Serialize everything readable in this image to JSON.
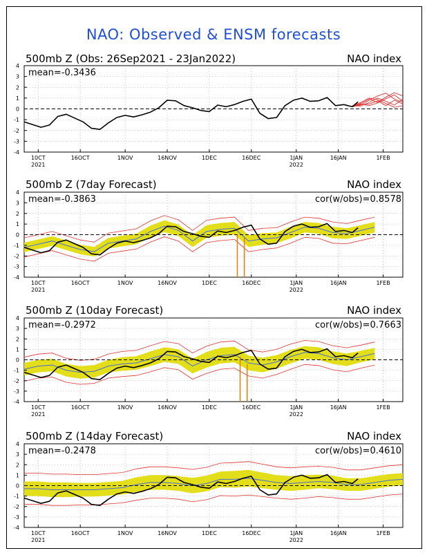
{
  "title": "NAO: Observed & ENSM forecasts",
  "colors": {
    "title": "#1f4fd6",
    "observed": "#000000",
    "ensemble_mean": "#4a6cd4",
    "spread_fill": "#e3de1a",
    "bounds": "#e03030",
    "members": "#e03030",
    "outlier": "#f07a00"
  },
  "x_axis": {
    "tick_labels": [
      "10CT",
      "16OCT",
      "1NOV",
      "16NOV",
      "1DEC",
      "16DEC",
      "1JAN",
      "16JAN",
      "1FEB"
    ],
    "year_labels": [
      {
        "day": 5,
        "label": "2021"
      },
      {
        "day": 97,
        "label": "2022"
      }
    ],
    "tick_days": [
      5,
      20,
      36,
      51,
      66,
      81,
      97,
      112,
      128
    ],
    "range_days": [
      0,
      135
    ]
  },
  "chart_data": [
    {
      "type": "line",
      "title": "500mb Z (Obs: 26Sep2021 - 23Jan2022)",
      "right_label": "NAO index",
      "mean_label": "mean=-0.3436",
      "cor_label": "",
      "ylim": [
        -4,
        4
      ],
      "yticks": [
        "4",
        "3",
        "2",
        "1",
        "0",
        "-1",
        "-2",
        "-3",
        "-4"
      ],
      "observed_days": [
        0,
        3,
        6,
        9,
        12,
        15,
        18,
        21,
        24,
        27,
        30,
        33,
        36,
        39,
        42,
        45,
        48,
        51,
        54,
        57,
        60,
        63,
        66,
        69,
        72,
        75,
        78,
        81,
        84,
        87,
        90,
        93,
        96,
        99,
        102,
        105,
        108,
        111,
        114,
        117,
        119
      ],
      "observed": [
        -1.2,
        -1.45,
        -1.7,
        -1.5,
        -0.7,
        -0.5,
        -0.85,
        -1.2,
        -1.8,
        -1.9,
        -1.3,
        -0.8,
        -0.6,
        -0.75,
        -0.55,
        -0.3,
        0.1,
        0.8,
        0.75,
        0.3,
        0.1,
        -0.15,
        -0.25,
        0.35,
        0.2,
        0.4,
        0.7,
        0.9,
        -0.4,
        -0.9,
        -0.8,
        0.3,
        0.8,
        1.0,
        0.7,
        0.75,
        1.05,
        0.3,
        0.4,
        0.2,
        0.65
      ],
      "forecast_members": [
        {
          "days": [
            117,
            120,
            123,
            126,
            129,
            132,
            135
          ],
          "values": [
            0.2,
            0.35,
            0.8,
            1.2,
            1.45,
            0.9,
            0.6
          ]
        },
        {
          "days": [
            117,
            120,
            123,
            126,
            129,
            132,
            135
          ],
          "values": [
            0.25,
            0.5,
            0.9,
            0.6,
            1.1,
            1.5,
            1.2
          ]
        },
        {
          "days": [
            117,
            120,
            123,
            126,
            129,
            132,
            135
          ],
          "values": [
            0.2,
            0.4,
            0.45,
            0.75,
            0.3,
            0.8,
            0.45
          ]
        },
        {
          "days": [
            117,
            120,
            123,
            126,
            129,
            132,
            135
          ],
          "values": [
            0.3,
            0.25,
            0.6,
            1.0,
            0.7,
            0.35,
            0.9
          ]
        },
        {
          "days": [
            117,
            120,
            123,
            126,
            129,
            132,
            135
          ],
          "values": [
            0.22,
            0.45,
            0.3,
            0.55,
            0.95,
            1.3,
            0.7
          ]
        },
        {
          "days": [
            117,
            120,
            123,
            126,
            129,
            132,
            135
          ],
          "values": [
            0.28,
            0.6,
            1.0,
            0.85,
            0.5,
            0.15,
            0.3
          ]
        }
      ]
    },
    {
      "type": "line",
      "title": "500mb Z (7day Forecast)",
      "right_label": "NAO index",
      "mean_label": "mean=-0.3863",
      "cor_label": "cor(w/obs)=0.8578",
      "ylim": [
        -4,
        4
      ],
      "yticks": [
        "4",
        "3",
        "2",
        "1",
        "0",
        "-1",
        "-2",
        "-3",
        "-4"
      ],
      "forecast_days": [
        0,
        5,
        10,
        15,
        20,
        25,
        30,
        35,
        40,
        45,
        50,
        55,
        60,
        65,
        70,
        75,
        80,
        85,
        90,
        95,
        100,
        105,
        110,
        115,
        120,
        125
      ],
      "ensemble_mean": [
        -1.2,
        -0.9,
        -0.6,
        -1.0,
        -1.4,
        -1.6,
        -0.8,
        -0.6,
        -0.4,
        0.3,
        0.8,
        0.4,
        -0.6,
        0.3,
        0.5,
        0.6,
        -0.6,
        -0.4,
        -0.3,
        0.2,
        0.7,
        0.6,
        0.2,
        0.1,
        0.4,
        0.7
      ],
      "spread": [
        0.45,
        0.45,
        0.45,
        0.45,
        0.45,
        0.45,
        0.5,
        0.5,
        0.5,
        0.55,
        0.55,
        0.55,
        0.55,
        0.6,
        0.6,
        0.6,
        0.55,
        0.55,
        0.5,
        0.55,
        0.5,
        0.5,
        0.55,
        0.5,
        0.5,
        0.5
      ],
      "bounds_extra": 0.45,
      "observed_days": [
        0,
        3,
        6,
        9,
        12,
        15,
        18,
        21,
        24,
        27,
        30,
        33,
        36,
        39,
        42,
        45,
        48,
        51,
        54,
        57,
        60,
        63,
        66,
        69,
        72,
        75,
        78,
        81,
        84,
        87,
        90,
        93,
        96,
        99,
        102,
        105,
        108,
        111,
        114,
        117,
        119
      ],
      "observed": [
        -1.2,
        -1.45,
        -1.7,
        -1.5,
        -0.7,
        -0.5,
        -0.85,
        -1.2,
        -1.8,
        -1.9,
        -1.3,
        -0.8,
        -0.6,
        -0.75,
        -0.55,
        -0.3,
        0.1,
        0.8,
        0.75,
        0.3,
        0.1,
        -0.15,
        -0.25,
        0.35,
        0.2,
        0.4,
        0.7,
        0.9,
        -0.4,
        -0.9,
        -0.8,
        0.3,
        0.8,
        1.0,
        0.7,
        0.75,
        1.05,
        0.3,
        0.4,
        0.2,
        0.65
      ],
      "outliers": [
        {
          "day": 76,
          "from": 0,
          "to": -4
        },
        {
          "day": 78.5,
          "from": -0.3,
          "to": -4
        }
      ]
    },
    {
      "type": "line",
      "title": "500mb Z (10day Forecast)",
      "right_label": "NAO index",
      "mean_label": "mean=-0.2972",
      "cor_label": "cor(w/obs)=0.7663",
      "ylim": [
        -4,
        4
      ],
      "yticks": [
        "4",
        "3",
        "2",
        "1",
        "0",
        "-1",
        "-2",
        "-3",
        "-4"
      ],
      "forecast_days": [
        0,
        5,
        10,
        15,
        20,
        25,
        30,
        35,
        40,
        45,
        50,
        55,
        60,
        65,
        70,
        75,
        80,
        85,
        90,
        95,
        100,
        105,
        110,
        115,
        120,
        125
      ],
      "ensemble_mean": [
        -0.9,
        -0.6,
        -0.5,
        -1.0,
        -1.2,
        -1.1,
        -0.6,
        -0.4,
        -0.3,
        0.1,
        0.5,
        0.3,
        -0.6,
        0.0,
        0.4,
        0.5,
        -0.3,
        -0.5,
        -0.2,
        0.3,
        0.7,
        0.6,
        0.2,
        0.0,
        0.3,
        0.6
      ],
      "spread": [
        0.6,
        0.6,
        0.6,
        0.6,
        0.6,
        0.6,
        0.6,
        0.65,
        0.65,
        0.7,
        0.7,
        0.7,
        0.7,
        0.75,
        0.75,
        0.75,
        0.7,
        0.7,
        0.65,
        0.65,
        0.6,
        0.6,
        0.6,
        0.6,
        0.55,
        0.55
      ],
      "bounds_extra": 0.55,
      "observed_days": [
        0,
        3,
        6,
        9,
        12,
        15,
        18,
        21,
        24,
        27,
        30,
        33,
        36,
        39,
        42,
        45,
        48,
        51,
        54,
        57,
        60,
        63,
        66,
        69,
        72,
        75,
        78,
        81,
        84,
        87,
        90,
        93,
        96,
        99,
        102,
        105,
        108,
        111,
        114,
        117,
        119
      ],
      "observed": [
        -1.2,
        -1.45,
        -1.7,
        -1.5,
        -0.7,
        -0.5,
        -0.85,
        -1.2,
        -1.8,
        -1.9,
        -1.3,
        -0.8,
        -0.6,
        -0.75,
        -0.55,
        -0.3,
        0.1,
        0.8,
        0.75,
        0.3,
        0.1,
        -0.15,
        -0.25,
        0.35,
        0.2,
        0.4,
        0.7,
        0.9,
        -0.4,
        -0.9,
        -0.8,
        0.3,
        0.8,
        1.0,
        0.7,
        0.75,
        1.05,
        0.3,
        0.4,
        0.2,
        0.65
      ],
      "outliers": [
        {
          "day": 77,
          "from": 0.3,
          "to": -4
        },
        {
          "day": 79.5,
          "from": -0.4,
          "to": -4
        }
      ]
    },
    {
      "type": "line",
      "title": "500mb Z (14day Forecast)",
      "right_label": "NAO index",
      "mean_label": "mean=-0.2478",
      "cor_label": "cor(w/obs)=0.4610",
      "ylim": [
        -4,
        4
      ],
      "yticks": [
        "4",
        "3",
        "2",
        "1",
        "0",
        "-1",
        "-2",
        "-3",
        "-4"
      ],
      "forecast_days": [
        0,
        5,
        10,
        15,
        20,
        25,
        30,
        35,
        40,
        45,
        50,
        55,
        60,
        65,
        70,
        75,
        80,
        85,
        90,
        95,
        100,
        105,
        110,
        115,
        120,
        125,
        130,
        135
      ],
      "ensemble_mean": [
        -0.3,
        -0.3,
        -0.4,
        -0.4,
        -0.4,
        -0.4,
        -0.3,
        -0.2,
        0.1,
        0.3,
        0.3,
        0.2,
        0.0,
        0.2,
        0.6,
        0.6,
        0.7,
        0.5,
        0.3,
        0.2,
        0.3,
        0.4,
        0.3,
        0.1,
        0.1,
        0.3,
        0.5,
        0.6
      ],
      "spread": [
        0.7,
        0.7,
        0.7,
        0.7,
        0.65,
        0.65,
        0.65,
        0.65,
        0.7,
        0.7,
        0.7,
        0.7,
        0.75,
        0.75,
        0.75,
        0.8,
        0.8,
        0.75,
        0.7,
        0.7,
        0.7,
        0.65,
        0.65,
        0.6,
        0.6,
        0.6,
        0.6,
        0.6
      ],
      "bounds_extra": 0.8,
      "observed_days": [
        0,
        3,
        6,
        9,
        12,
        15,
        18,
        21,
        24,
        27,
        30,
        33,
        36,
        39,
        42,
        45,
        48,
        51,
        54,
        57,
        60,
        63,
        66,
        69,
        72,
        75,
        78,
        81,
        84,
        87,
        90,
        93,
        96,
        99,
        102,
        105,
        108,
        111,
        114,
        117,
        119
      ],
      "observed": [
        -1.2,
        -1.45,
        -1.7,
        -1.5,
        -0.7,
        -0.5,
        -0.85,
        -1.2,
        -1.8,
        -1.9,
        -1.3,
        -0.8,
        -0.6,
        -0.75,
        -0.55,
        -0.3,
        0.1,
        0.8,
        0.75,
        0.3,
        0.1,
        -0.15,
        -0.25,
        0.35,
        0.2,
        0.4,
        0.7,
        0.9,
        -0.4,
        -0.9,
        -0.8,
        0.3,
        0.8,
        1.0,
        0.7,
        0.75,
        1.05,
        0.3,
        0.4,
        0.2,
        0.65
      ],
      "outliers": []
    }
  ]
}
